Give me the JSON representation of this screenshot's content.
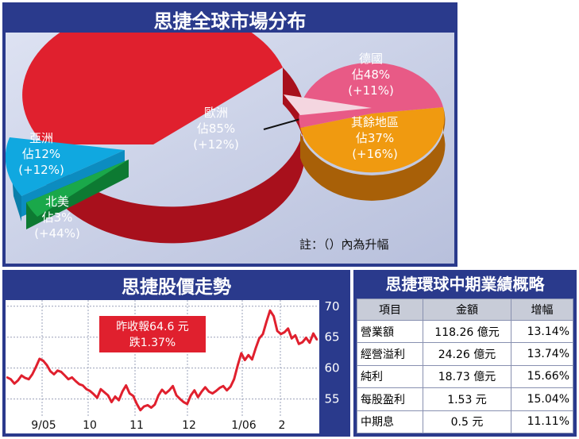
{
  "market": {
    "title": "思捷全球市場分布",
    "note": "註：（）內為升幅",
    "europe": {
      "name": "歐洲",
      "share": "佔85%",
      "growth": "(+12%)",
      "percent": 85,
      "color": "#e0202e"
    },
    "asia": {
      "name": "亞洲",
      "share": "佔12%",
      "growth": "(+12%)",
      "percent": 12,
      "color": "#10a8e0"
    },
    "america": {
      "name": "北美",
      "share": "佔3%",
      "growth": "(+44%)",
      "percent": 3,
      "color": "#1aa84a"
    },
    "germany": {
      "name": "德國",
      "share": "佔48%",
      "growth": "(+11%)",
      "percent": 48,
      "color": "#e85a86"
    },
    "others": {
      "name": "其餘地區",
      "share": "佔37%",
      "growth": "(+16%)",
      "percent": 37,
      "color": "#f09a10"
    }
  },
  "stock": {
    "title": "思捷股價走勢",
    "callout_line1": "昨收報64.6 元",
    "callout_line2": "跌1.37%"
  },
  "results": {
    "title": "思捷環球中期業績概略",
    "headers": [
      "項目",
      "金額",
      "增幅"
    ],
    "rows": [
      [
        "營業額",
        "118.26 億元",
        "13.14%"
      ],
      [
        "經營溢利",
        "24.26 億元",
        "13.74%"
      ],
      [
        "純利",
        "18.73 億元",
        "15.66%"
      ],
      [
        "每股盈利",
        "1.53 元",
        "15.04%"
      ],
      [
        "中期息",
        "0.5 元",
        "11.11%"
      ]
    ]
  },
  "chart_data": [
    {
      "type": "pie",
      "title": "思捷全球市場分布",
      "slices": [
        {
          "label": "歐洲",
          "value": 85,
          "growth": "+12%"
        },
        {
          "label": "亞洲",
          "value": 12,
          "growth": "+12%"
        },
        {
          "label": "北美",
          "value": 3,
          "growth": "+44%"
        }
      ]
    },
    {
      "type": "pie",
      "title": "",
      "parent": "歐洲",
      "slices": [
        {
          "label": "德國",
          "value": 48,
          "growth": "+11%"
        },
        {
          "label": "其餘地區",
          "value": 37,
          "growth": "+16%"
        }
      ]
    },
    {
      "type": "line",
      "title": "思捷股價走勢",
      "x_ticks": [
        "9/05",
        "10",
        "11",
        "12",
        "1/06",
        "2"
      ],
      "y_ticks": [
        55,
        60,
        65,
        70
      ],
      "ylim": [
        52,
        71
      ],
      "grid": true,
      "series": [
        {
          "values": [
            58.5,
            58.2,
            57.5,
            58,
            58.8,
            58.4,
            58.2,
            59,
            60.2,
            61.5,
            61.2,
            60.5,
            59.5,
            59,
            59.6,
            59.4,
            58.8,
            58.2,
            58.5,
            57.9,
            57.4,
            57.2,
            56.6,
            56.3,
            55.8,
            55.2,
            56.6,
            56.1,
            55.6,
            54.5,
            55.4,
            54.8,
            56.2,
            57.2,
            55.9,
            55.5,
            54.2,
            53.2,
            53.8,
            54,
            53.6,
            54.1,
            55.6,
            56.5,
            55.9,
            56.4,
            57.1,
            55.6,
            55,
            54.5,
            54.2,
            55.6,
            56.4,
            55.3,
            56.2,
            56.9,
            56.2,
            55.9,
            56.3,
            56.8,
            57.1,
            56.4,
            57,
            58.2,
            60.4,
            62.4,
            61.3,
            62.1,
            61.4,
            63.2,
            64.8,
            65.5,
            67.5,
            69.3,
            68.4,
            66,
            65.5,
            65.8,
            66.4,
            64.8,
            65.3,
            63.9,
            64.2,
            64.9,
            64.1,
            65.6,
            64.6
          ]
        }
      ]
    },
    {
      "type": "table",
      "title": "思捷環球中期業績概略",
      "columns": [
        "項目",
        "金額",
        "增幅"
      ],
      "rows": [
        [
          "營業額",
          "118.26 億元",
          "13.14%"
        ],
        [
          "經營溢利",
          "24.26 億元",
          "13.74%"
        ],
        [
          "純利",
          "18.73 億元",
          "15.66%"
        ],
        [
          "每股盈利",
          "1.53 元",
          "15.04%"
        ],
        [
          "中期息",
          "0.5 元",
          "11.11%"
        ]
      ]
    }
  ]
}
